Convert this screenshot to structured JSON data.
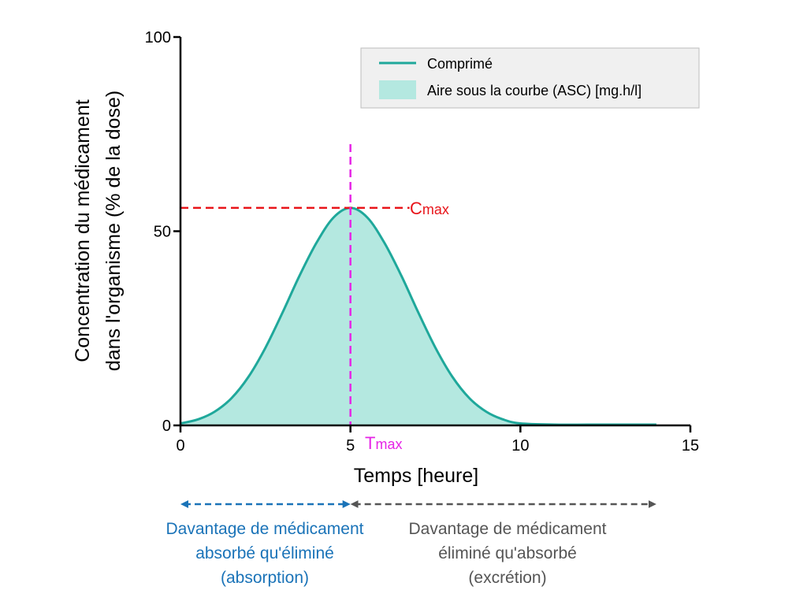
{
  "chart_data": {
    "type": "area",
    "xlabel": "Temps [heure]",
    "ylabel_line1": "Concentration du médicament",
    "ylabel_line2": "dans l'organisme (% de la dose)",
    "xlim": [
      0,
      15
    ],
    "ylim": [
      0,
      100
    ],
    "x_ticks": [
      "0",
      "5",
      "10",
      "15"
    ],
    "y_ticks": [
      "0",
      "50",
      "100"
    ],
    "grid": false,
    "legend_position": "top-right",
    "series": [
      {
        "name": "Comprimé",
        "color": "#1fa89b",
        "fill_color": "#b4e8e0",
        "area_label": "Aire sous la courbe (ASC) [mg.h/l]",
        "x": [
          0,
          0.5,
          1,
          1.5,
          2,
          2.5,
          3,
          3.5,
          4,
          4.5,
          5,
          5.5,
          6,
          6.5,
          7,
          7.5,
          8,
          8.5,
          9,
          9.5,
          10,
          11,
          12,
          13,
          14
        ],
        "y": [
          0.5,
          1.5,
          3.5,
          7,
          12.5,
          20,
          29,
          38.5,
          47,
          53.5,
          56,
          53.5,
          47,
          38.5,
          29,
          20,
          12.5,
          7,
          3.5,
          1.5,
          0.5,
          0.2,
          0.2,
          0.2,
          0.2
        ]
      }
    ],
    "cmax": {
      "label": "C",
      "subscript": "max",
      "value": 56,
      "color": "#e8141a"
    },
    "tmax": {
      "label": "T",
      "subscript": "max",
      "value": 5,
      "color": "#e624e6"
    },
    "phases": [
      {
        "lines": [
          "Davantage de médicament",
          "absorbé qu'éliminé",
          "(absorption)"
        ],
        "color": "#1a73b8",
        "x_start": 0,
        "x_end": 5
      },
      {
        "lines": [
          "Davantage de médicament",
          "éliminé qu'absorbé",
          "(excrétion)"
        ],
        "color": "#555555",
        "x_start": 5,
        "x_end": 14
      }
    ]
  }
}
